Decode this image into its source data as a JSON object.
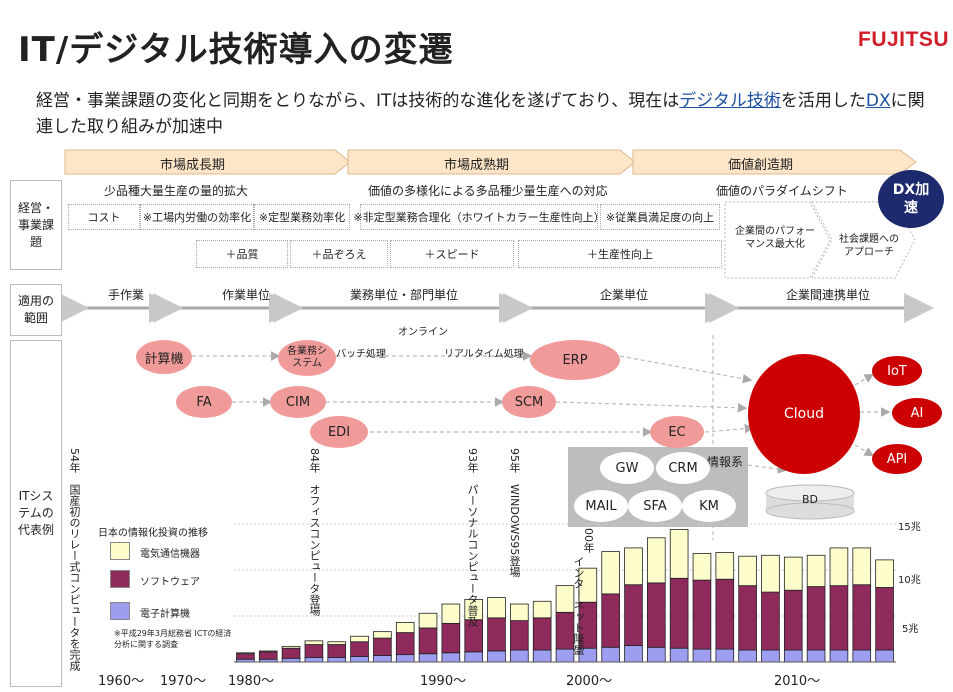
{
  "header": {
    "title": "IT/デジタル技術導入の変遷",
    "logo": "FUJITSU",
    "subtitle_parts": [
      "経営・事業課題の変化と同期をとりながら、ITは技術的な進化を遂げており、現在は",
      "デジタル技術",
      "を活用した",
      "DX",
      "に関連した取り組みが加速中"
    ]
  },
  "phases": [
    "市場成長期",
    "市場成熟期",
    "価値創造期"
  ],
  "row_labels": {
    "business": "経営・事業課題",
    "scope": "適用の範囲",
    "systems": "ITシステムの代表例"
  },
  "business": {
    "themes": [
      "少品種大量生産の量的拡大",
      "価値の多様化による多品種少量生産への対応",
      "価値のパラダイムシフト"
    ],
    "items_row1": [
      "コスト",
      "※工場内労働の効率化",
      "※定型業務効率化",
      "※非定型業務合理化（ホワイトカラー生産性向上）",
      "※従業員満足度の向上"
    ],
    "items_row2": [
      "＋品質",
      "＋品ぞろえ",
      "＋スピード",
      "＋生産性向上"
    ],
    "creation_items": [
      "企業間のパフォーマンス最大化",
      "社会課題へのアプローチ"
    ],
    "dx_badge": "DX加速"
  },
  "scope": [
    "手作業",
    "作業単位",
    "業務単位・部門単位",
    "企業単位",
    "企業間連携単位"
  ],
  "systems": {
    "bubbles": [
      "計算機",
      "各業務システム",
      "FA",
      "CIM",
      "EDI",
      "ERP",
      "SCM",
      "EC",
      "Cloud",
      "IoT",
      "AI",
      "API"
    ],
    "labels": [
      "バッチ処理",
      "リアルタイム処理",
      "オンライン",
      "情報系",
      "BD"
    ],
    "info_items": [
      "GW",
      "CRM",
      "MAIL",
      "SFA",
      "KM"
    ],
    "events": [
      {
        "year": "54年",
        "text": "国産初のリレー式コンピュータを完成"
      },
      {
        "year": "84年",
        "text": "オフィスコンピュータ登場"
      },
      {
        "year": "93年",
        "text": "パーソナルコンピュータ普及"
      },
      {
        "year": "95年",
        "text": "WINDOWS95登場"
      },
      {
        "year": "00年",
        "text": "インターネット隆盛"
      }
    ]
  },
  "timeline": [
    "1960～",
    "1970～",
    "1980～",
    "1990～",
    "2000～",
    "2010～"
  ],
  "chart_data": {
    "type": "bar",
    "stacked": true,
    "title": "日本の情報化投資の推移",
    "source_note": "※平成29年3月総務省 ICTの経済分析に関する調査",
    "y_ticks": [
      "5兆",
      "10兆",
      "15兆"
    ],
    "ylim": [
      0,
      15
    ],
    "series": [
      {
        "name": "電子計算機",
        "color": "#9e9ef0",
        "values": [
          0.3,
          0.3,
          0.4,
          0.5,
          0.5,
          0.6,
          0.7,
          0.8,
          0.9,
          1.0,
          1.1,
          1.2,
          1.3,
          1.3,
          1.4,
          1.5,
          1.6,
          1.8,
          1.6,
          1.5,
          1.4,
          1.4,
          1.3,
          1.3,
          1.3,
          1.3,
          1.3,
          1.3,
          1.3
        ]
      },
      {
        "name": "ソフトウェア",
        "color": "#8e2a5c",
        "values": [
          0.6,
          0.8,
          1.1,
          1.4,
          1.4,
          1.6,
          1.9,
          2.4,
          2.8,
          3.2,
          3.5,
          3.6,
          3.2,
          3.5,
          4.0,
          5.0,
          5.8,
          6.6,
          7.0,
          7.6,
          7.5,
          7.6,
          7.0,
          6.3,
          6.5,
          6.9,
          7.0,
          7.1,
          6.8
        ]
      },
      {
        "name": "電気通信機器",
        "color": "#fdfccb",
        "values": [
          0.1,
          0.1,
          0.2,
          0.4,
          0.3,
          0.6,
          0.7,
          1.1,
          1.6,
          2.1,
          2.2,
          2.2,
          1.8,
          1.8,
          2.9,
          3.7,
          4.6,
          4.0,
          4.9,
          5.3,
          2.9,
          2.9,
          3.2,
          4.0,
          3.6,
          3.4,
          4.1,
          4.0,
          3.0
        ]
      }
    ]
  }
}
